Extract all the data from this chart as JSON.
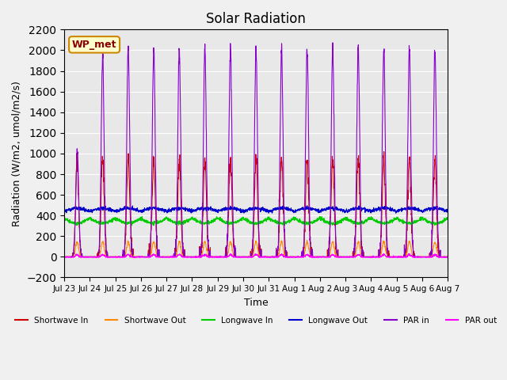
{
  "title": "Solar Radiation",
  "ylabel": "Radiation (W/m2, umol/m2/s)",
  "xlabel": "Time",
  "ylim": [
    -200,
    2200
  ],
  "yticks": [
    -200,
    0,
    200,
    400,
    600,
    800,
    1000,
    1200,
    1400,
    1600,
    1800,
    2000,
    2200
  ],
  "annotation": "WP_met",
  "bg_color": "#e8e8e8",
  "series": {
    "shortwave_in": {
      "color": "#cc0000",
      "label": "Shortwave In"
    },
    "shortwave_out": {
      "color": "#ff8800",
      "label": "Shortwave Out"
    },
    "longwave_in": {
      "color": "#00cc00",
      "label": "Longwave In"
    },
    "longwave_out": {
      "color": "#0000cc",
      "label": "Longwave Out"
    },
    "par_in": {
      "color": "#8800cc",
      "label": "PAR in"
    },
    "par_out": {
      "color": "#ff00ff",
      "label": "PAR out"
    }
  },
  "n_days": 15,
  "day_hours": 24,
  "pts_per_day": 144
}
